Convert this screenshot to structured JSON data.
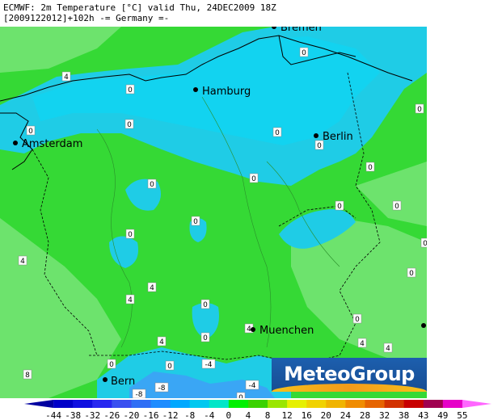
{
  "header": {
    "line1": "ECMWF: 2m Temperature [°C] valid Thu, 24DEC2009 18Z",
    "line2": "[2009122012]+102h -= Germany =-"
  },
  "cities": [
    {
      "name": "Hamburg"
    },
    {
      "name": "Berlin"
    },
    {
      "name": "Amsterdam"
    },
    {
      "name": "Muenchen"
    },
    {
      "name": "Bern"
    },
    {
      "name": "Bremen"
    }
  ],
  "contour_labels": [
    "4",
    "0",
    "0",
    "0",
    "0",
    "0",
    "0",
    "0",
    "0",
    "0",
    "0",
    "0",
    "0",
    "0",
    "0",
    "0",
    "0",
    "0",
    "4",
    "4",
    "4",
    "0",
    "4",
    "4",
    "0",
    "4",
    "0",
    "8",
    "-8",
    "-8",
    "-4",
    "-4",
    "0",
    "4",
    "0"
  ],
  "colorbar": {
    "ticks": [
      "-44",
      "-38",
      "-32",
      "-26",
      "-20",
      "-16",
      "-12",
      "-8",
      "-4",
      "0",
      "4",
      "8",
      "12",
      "16",
      "20",
      "24",
      "28",
      "32",
      "38",
      "43",
      "49",
      "55"
    ],
    "colors": [
      "#0000a0",
      "#0000c8",
      "#1010e0",
      "#2828f0",
      "#3a50f0",
      "#2f6ef5",
      "#1e8cff",
      "#00a8ff",
      "#00c8f0",
      "#00e6c8",
      "#00f000",
      "#3ad200",
      "#9ae600",
      "#e6f000",
      "#f0d200",
      "#f0b400",
      "#f08c00",
      "#e66400",
      "#d23200",
      "#c80000",
      "#a00050",
      "#e600c8",
      "#ff66ff"
    ]
  },
  "colors": {
    "land": "#35d935",
    "warm_land": "#6de36d",
    "cold": "#1fcce6",
    "sea": "#12d3f0",
    "frost": "#3aa6f5"
  },
  "logo": {
    "text": "MeteoGroup"
  }
}
